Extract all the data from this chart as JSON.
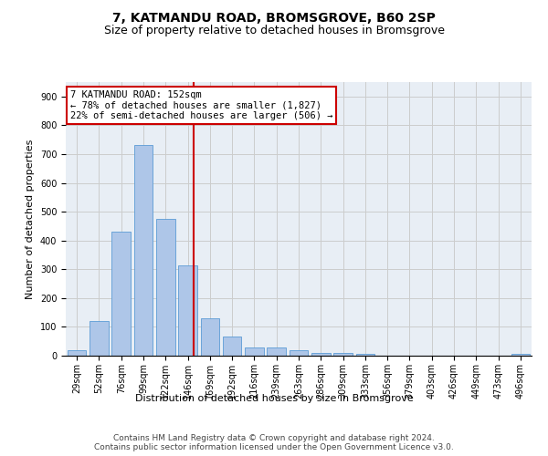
{
  "title": "7, KATMANDU ROAD, BROMSGROVE, B60 2SP",
  "subtitle": "Size of property relative to detached houses in Bromsgrove",
  "xlabel": "Distribution of detached houses by size in Bromsgrove",
  "ylabel": "Number of detached properties",
  "categories": [
    "29sqm",
    "52sqm",
    "76sqm",
    "99sqm",
    "122sqm",
    "146sqm",
    "169sqm",
    "192sqm",
    "216sqm",
    "239sqm",
    "263sqm",
    "286sqm",
    "309sqm",
    "333sqm",
    "356sqm",
    "379sqm",
    "403sqm",
    "426sqm",
    "449sqm",
    "473sqm",
    "496sqm"
  ],
  "values": [
    20,
    120,
    430,
    730,
    475,
    315,
    130,
    65,
    30,
    30,
    20,
    10,
    10,
    5,
    0,
    0,
    0,
    0,
    0,
    0,
    5
  ],
  "bar_color": "#aec6e8",
  "bar_edgecolor": "#5b9bd5",
  "annotation_line1": "7 KATMANDU ROAD: 152sqm",
  "annotation_line2": "← 78% of detached houses are smaller (1,827)",
  "annotation_line3": "22% of semi-detached houses are larger (506) →",
  "annotation_box_color": "#ffffff",
  "annotation_box_edgecolor": "#cc0000",
  "vline_color": "#cc0000",
  "ylim": [
    0,
    950
  ],
  "yticks": [
    0,
    100,
    200,
    300,
    400,
    500,
    600,
    700,
    800,
    900
  ],
  "grid_color": "#cccccc",
  "bg_color": "#e8eef5",
  "footer1": "Contains HM Land Registry data © Crown copyright and database right 2024.",
  "footer2": "Contains public sector information licensed under the Open Government Licence v3.0.",
  "title_fontsize": 10,
  "subtitle_fontsize": 9,
  "axis_label_fontsize": 8,
  "tick_fontsize": 7,
  "footer_fontsize": 6.5,
  "annot_fontsize": 7.5
}
